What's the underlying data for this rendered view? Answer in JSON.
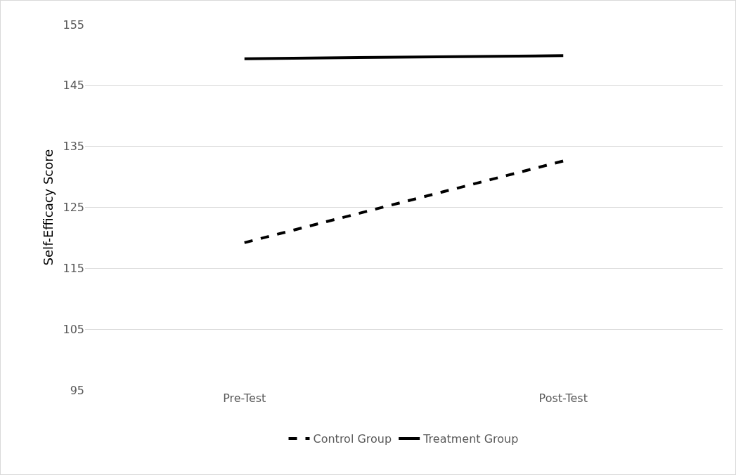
{
  "chart_data": {
    "type": "line",
    "ylabel": "Self-Efficacy Score",
    "categories": [
      "Pre-Test",
      "Post-Test"
    ],
    "series": [
      {
        "name": "Control Group",
        "color": "#000000",
        "line_style": "dashed",
        "values": [
          119.2,
          132.6
        ]
      },
      {
        "name": "Treatment Group",
        "color": "#000000",
        "line_style": "solid",
        "values": [
          149.4,
          149.9
        ]
      }
    ],
    "ylim": [
      95,
      155
    ],
    "yticks": [
      95,
      105,
      115,
      125,
      135,
      145,
      155
    ],
    "grid": "y",
    "legend": "bottom",
    "marker": "none"
  }
}
